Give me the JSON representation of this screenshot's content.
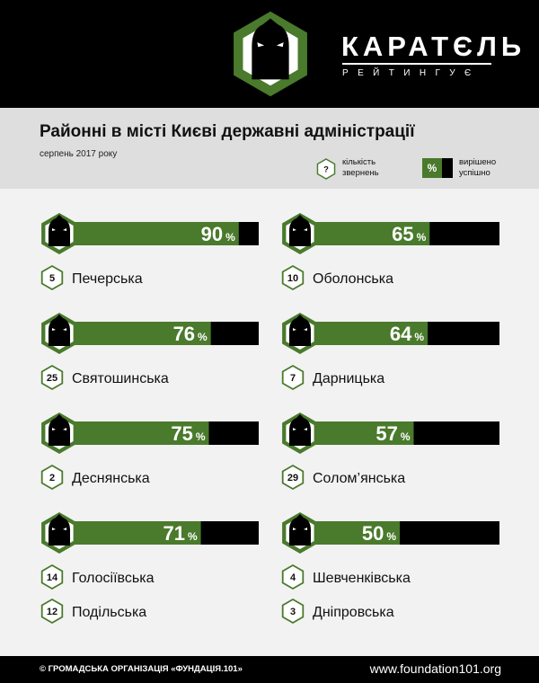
{
  "brand": {
    "title": "КАРАТЄЛЬ",
    "subtitle": "РЕЙТИНГУЄ",
    "logo_icon": "hooded-figure-hexagon-icon",
    "colors": {
      "accent": "#4a7a2c",
      "dark": "#000000",
      "band": "#dedede",
      "background": "#f2f2f2"
    }
  },
  "header": {
    "title": "Районні в місті Києві державні адміністрації",
    "date": "серпень 2017 року"
  },
  "legend": {
    "count_symbol": "?",
    "count_label": "кількість звернень",
    "percent_symbol": "%",
    "percent_label": "вирішено успішно"
  },
  "chart_data": {
    "type": "bar",
    "title": "Районні в місті Києві державні адміністрації",
    "subtitle": "серпень 2017 року",
    "unit": "%",
    "ylim": [
      0,
      100
    ],
    "series": [
      {
        "name": "вирішено успішно",
        "values": [
          90,
          76,
          75,
          71,
          65,
          64,
          57,
          50,
          null,
          null
        ]
      },
      {
        "name": "кількість звернень",
        "values": [
          5,
          25,
          2,
          14,
          10,
          7,
          29,
          4,
          12,
          3
        ]
      }
    ],
    "districts": [
      {
        "name": "Печерська",
        "count": 5,
        "percent": 90
      },
      {
        "name": "Святошинська",
        "count": 25,
        "percent": 76
      },
      {
        "name": "Деснянська",
        "count": 2,
        "percent": 75
      },
      {
        "name": "Голосіївська",
        "count": 14,
        "percent": 71
      },
      {
        "name": "Оболонська",
        "count": 10,
        "percent": 65
      },
      {
        "name": "Дарницька",
        "count": 7,
        "percent": 64
      },
      {
        "name": "Солом’янська",
        "count": 29,
        "percent": 57
      },
      {
        "name": "Шевченківська",
        "count": 4,
        "percent": 50
      },
      {
        "name": "Подільська",
        "count": 12,
        "percent": null
      },
      {
        "name": "Дніпровська",
        "count": 3,
        "percent": null
      }
    ]
  },
  "footer": {
    "left": "© ГРОМАДСЬКА ОРГАНІЗАЦІЯ «ФУНДАЦІЯ.101»",
    "right": "www.foundation101.org"
  }
}
